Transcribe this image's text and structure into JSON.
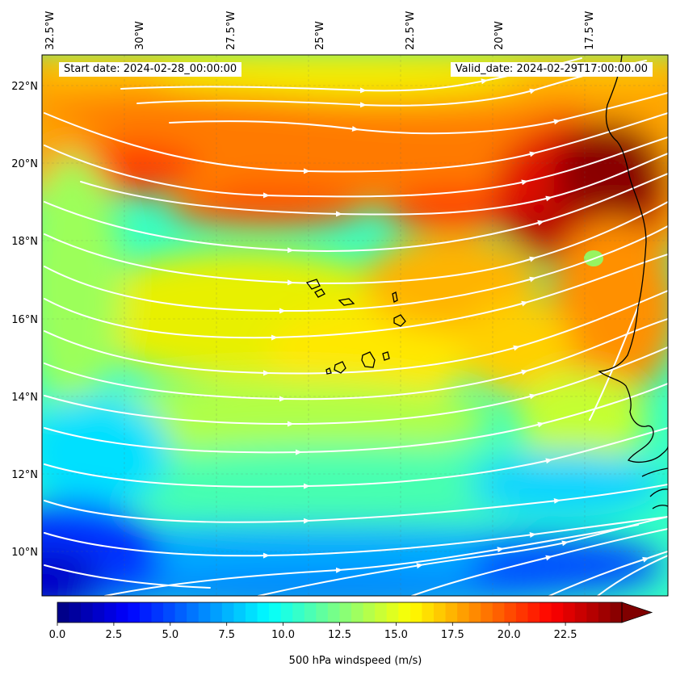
{
  "header": {
    "start_date": "Start date: 2024-02-28_00:00:00",
    "valid_date": "Valid_date: 2024-02-29T17:00:00.00"
  },
  "axes": {
    "lon_ticks": [
      {
        "value": -32.5,
        "label": "32.5°W"
      },
      {
        "value": -30.0,
        "label": "30°W"
      },
      {
        "value": -27.5,
        "label": "27.5°W"
      },
      {
        "value": -25.0,
        "label": "25°W"
      },
      {
        "value": -22.5,
        "label": "22.5°W"
      },
      {
        "value": -20.0,
        "label": "20°W"
      },
      {
        "value": -17.5,
        "label": "17.5°W"
      }
    ],
    "lat_ticks": [
      {
        "value": 22,
        "label": "22°N"
      },
      {
        "value": 20,
        "label": "20°N"
      },
      {
        "value": 18,
        "label": "18°N"
      },
      {
        "value": 16,
        "label": "16°N"
      },
      {
        "value": 14,
        "label": "14°N"
      },
      {
        "value": 12,
        "label": "12°N"
      },
      {
        "value": 10,
        "label": "10°N"
      }
    ],
    "lon_range": [
      -32.5,
      -15.0
    ],
    "lat_range": [
      8.9,
      22.8
    ]
  },
  "colorbar": {
    "label": "500 hPa windspeed (m/s)",
    "range": [
      0,
      25
    ],
    "extend": "max",
    "colormap": "jet",
    "ticks": [
      {
        "value": 0.0,
        "label": "0.0"
      },
      {
        "value": 2.5,
        "label": "2.5"
      },
      {
        "value": 5.0,
        "label": "5.0"
      },
      {
        "value": 7.5,
        "label": "7.5"
      },
      {
        "value": 10.0,
        "label": "10.0"
      },
      {
        "value": 12.5,
        "label": "12.5"
      },
      {
        "value": 15.0,
        "label": "15.0"
      },
      {
        "value": 17.5,
        "label": "17.5"
      },
      {
        "value": 20.0,
        "label": "20.0"
      },
      {
        "value": 22.5,
        "label": "22.5"
      }
    ]
  },
  "map": {
    "field": "500 hPa windspeed",
    "streamline_color": "#ffffff",
    "coastline_color": "#000000",
    "gridlines": true
  }
}
